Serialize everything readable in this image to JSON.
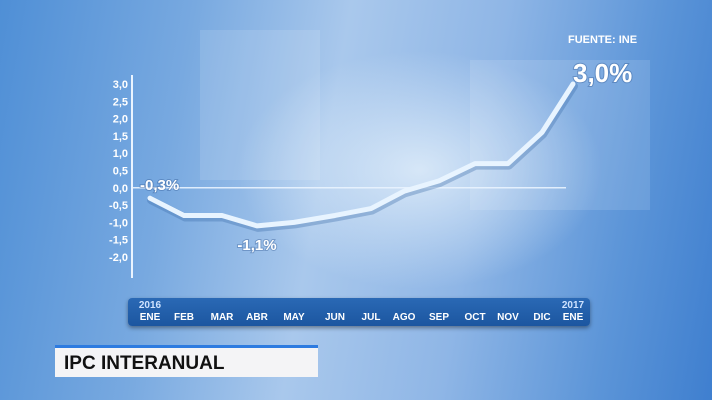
{
  "source": "FUENTE: INE",
  "caption": "IPC INTERANUAL",
  "colors": {
    "line": "#e8f4ff",
    "axis_bar": "#1c56a0",
    "caption_border": "#2d7be0"
  },
  "chart_data": {
    "type": "line",
    "title": "",
    "x": [
      "ENE",
      "FEB",
      "MAR",
      "ABR",
      "MAY",
      "JUN",
      "JUL",
      "AGO",
      "SEP",
      "OCT",
      "NOV",
      "DIC",
      "ENE"
    ],
    "years": [
      {
        "label": "2016",
        "index": 0
      },
      {
        "label": "2017",
        "index": 12
      }
    ],
    "values": [
      -0.3,
      -0.8,
      -0.8,
      -1.1,
      -1.0,
      -0.8,
      -0.6,
      -0.1,
      0.2,
      0.7,
      0.7,
      1.6,
      3.0
    ],
    "ylim": [
      -2.0,
      3.0
    ],
    "yticks": [
      "3,0",
      "2,5",
      "2,0",
      "1,5",
      "1,0",
      "0,5",
      "0,0",
      "-0,5",
      "-1,0",
      "-1,5",
      "-2,0"
    ],
    "annotations": [
      {
        "index": 0,
        "text": "-0,3%"
      },
      {
        "index": 3,
        "text": "-1,1%"
      },
      {
        "index": 12,
        "text": "3,0%"
      }
    ],
    "zero_line": true,
    "grid": false
  }
}
